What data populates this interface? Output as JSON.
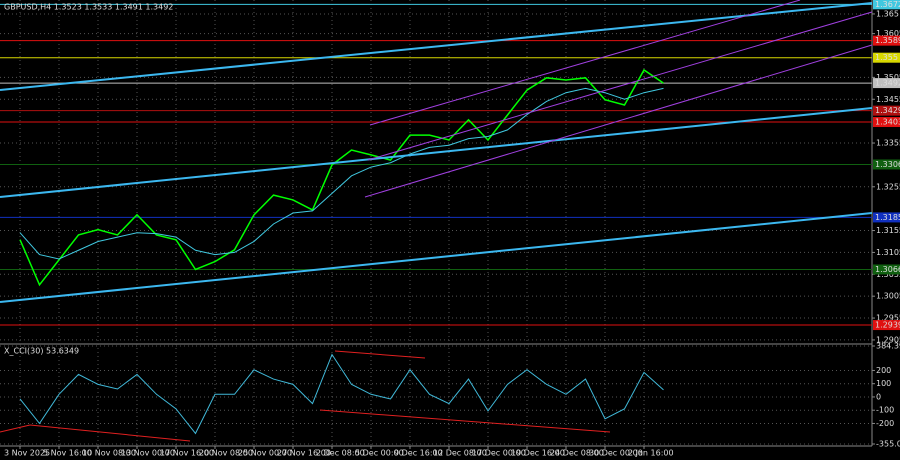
{
  "chart_data": [
    {
      "type": "line",
      "title": "GBPUSD,H4 1.3523 1.3533 1.3491 1.3492",
      "categories": [
        "3 Nov 2025",
        null,
        "5 Nov 16:00",
        null,
        "10 Nov 08:00",
        null,
        "13 Nov 00:00",
        null,
        "17 Nov 16:00",
        null,
        "20 Nov 08:00",
        null,
        "25 Nov 00:00",
        null,
        "27 Nov 16:00",
        null,
        "2 Dec 08:00",
        null,
        "5 Dec 00:00",
        null,
        "9 Dec 16:00",
        null,
        "12 Dec 08:00",
        null,
        "17 Dec 00:00",
        null,
        "19 Dec 16:00",
        null,
        "24 Dec 08:00",
        null,
        "30 Dec 00:00",
        null,
        "2 Jan 16:00",
        null
      ],
      "series": [
        {
          "color": "#00ff00",
          "values": [
            1.3134,
            1.3031,
            1.3088,
            1.3145,
            1.3157,
            1.3145,
            1.3191,
            1.3145,
            1.3134,
            1.3066,
            1.3084,
            1.3111,
            1.3191,
            1.3236,
            1.3225,
            1.3202,
            1.3305,
            1.3339,
            1.3328,
            1.3316,
            1.3373,
            1.3373,
            1.3362,
            1.3408,
            1.3362,
            1.3419,
            1.3476,
            1.3504,
            1.3499,
            1.3504,
            1.3454,
            1.3442,
            1.3522,
            1.3492
          ]
        },
        {
          "color": "#40c8e0",
          "values": [
            1.315,
            1.31,
            1.309,
            1.311,
            1.313,
            1.314,
            1.315,
            1.3148,
            1.314,
            1.311,
            1.31,
            1.3105,
            1.313,
            1.317,
            1.3195,
            1.32,
            1.324,
            1.328,
            1.33,
            1.331,
            1.333,
            1.3345,
            1.335,
            1.3365,
            1.337,
            1.3385,
            1.342,
            1.345,
            1.347,
            1.348,
            1.347,
            1.3455,
            1.347,
            1.348
          ]
        }
      ],
      "ylim": [
        1.2898,
        1.3675
      ],
      "yticks": [
        1.365,
        1.3605,
        1.3505,
        1.3455,
        1.3355,
        1.3255,
        1.3155,
        1.3105,
        1.3055,
        1.3005,
        1.2955,
        1.2905
      ],
      "levels": [
        {
          "value": 1.3672,
          "color": "#40c8e0"
        },
        {
          "value": 1.3589,
          "color": "#e01010"
        },
        {
          "value": 1.355,
          "color": "#d8d800"
        },
        {
          "value": 1.3492,
          "color": "#c0c0c0"
        },
        {
          "value": 1.3429,
          "color": "#b01010"
        },
        {
          "value": 1.3403,
          "color": "#e01010"
        },
        {
          "value": 1.3306,
          "color": "#106010"
        },
        {
          "value": 1.3185,
          "color": "#1030c0"
        },
        {
          "value": 1.3066,
          "color": "#106010"
        },
        {
          "value": 1.2939,
          "color": "#e01010"
        }
      ],
      "grid": true
    },
    {
      "type": "line",
      "title": "X_CCI(30) 53.6349",
      "series": [
        {
          "color": "#40b8d8",
          "values": [
            -15,
            -200,
            20,
            170,
            95,
            60,
            170,
            20,
            -90,
            -275,
            20,
            20,
            205,
            135,
            95,
            -50,
            320,
            95,
            20,
            -15,
            205,
            20,
            -50,
            135,
            -105,
            95,
            205,
            95,
            20,
            135,
            -165,
            -90,
            185,
            53.6349
          ]
        }
      ],
      "ylim": [
        -355.0311,
        384.3971
      ],
      "yticks": [
        384.3971,
        200,
        100,
        0,
        -100,
        -200,
        -355.0311
      ],
      "grid": true
    }
  ]
}
